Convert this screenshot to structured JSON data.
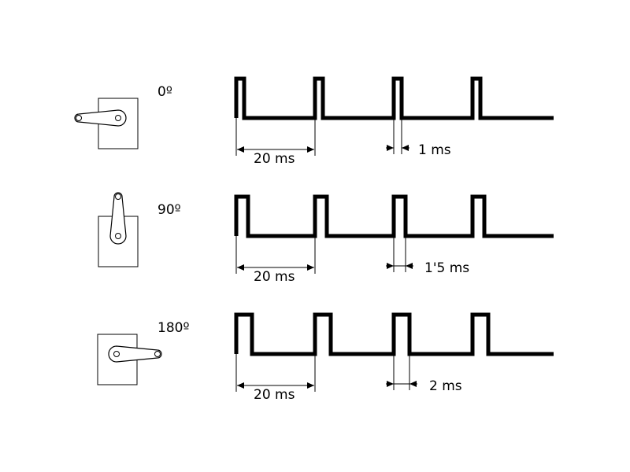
{
  "rows": [
    {
      "angle_label": "0º",
      "period_label": "20 ms",
      "pulse_label": "1 ms",
      "pulse_ms": 1.0,
      "arm": "left"
    },
    {
      "angle_label": "90º",
      "period_label": "20 ms",
      "pulse_label": "1'5 ms",
      "pulse_ms": 1.5,
      "arm": "up"
    },
    {
      "angle_label": "180º",
      "period_label": "20 ms",
      "pulse_label": "2 ms",
      "pulse_ms": 2.0,
      "arm": "right"
    }
  ],
  "period_ms": 20,
  "pulses_per_row": 4
}
